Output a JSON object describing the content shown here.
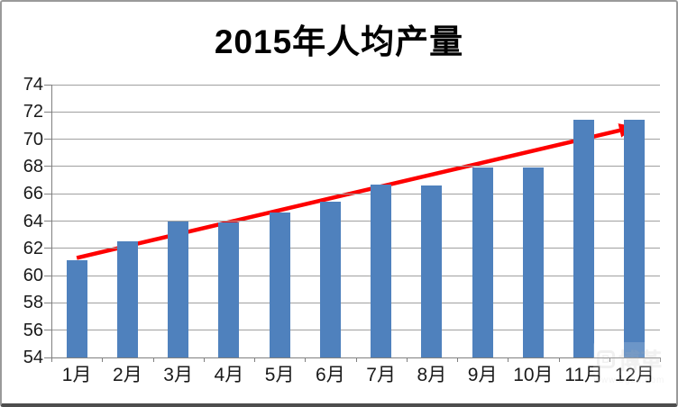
{
  "chart_data": {
    "type": "bar",
    "title": "2015年人均产量",
    "categories": [
      "1月",
      "2月",
      "3月",
      "4月",
      "5月",
      "6月",
      "7月",
      "8月",
      "9月",
      "10月",
      "11月",
      "12月"
    ],
    "values": [
      61.1,
      62.5,
      64.0,
      63.9,
      64.6,
      65.4,
      66.7,
      66.6,
      67.9,
      67.9,
      71.4,
      71.4
    ],
    "xlabel": "",
    "ylabel": "",
    "ylim": [
      54,
      74
    ],
    "ytick_step": 2,
    "ytick_labels": [
      "54",
      "56",
      "58",
      "60",
      "62",
      "64",
      "66",
      "68",
      "70",
      "72",
      "74"
    ],
    "grid": true,
    "legend": "none",
    "bar_color": "#4f81bd",
    "gridline_color": "#a0a0a0",
    "axis_color": "#808080",
    "trend_arrow": {
      "color": "#fe0000",
      "start": {
        "month_index": 0,
        "value": 61.3
      },
      "end": {
        "month_index": 11,
        "value": 70.9
      }
    }
  },
  "watermark": {
    "logo_text": "B",
    "brand_text": "博革",
    "url_text": "www.bgzx.com"
  }
}
